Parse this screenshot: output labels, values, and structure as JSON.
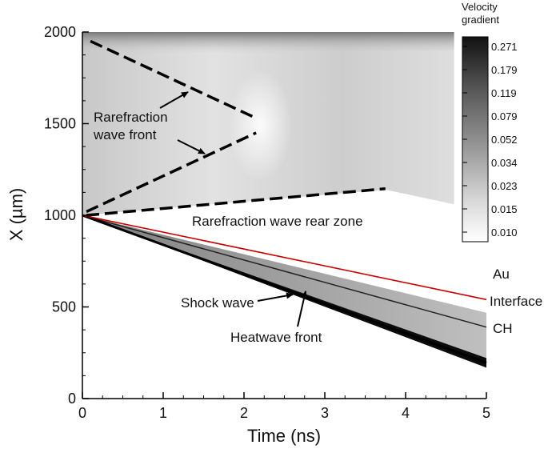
{
  "chart_data": {
    "type": "heatmap",
    "title": "",
    "xlabel": "Time (ns)",
    "ylabel": "X (µm)",
    "xlim": [
      0,
      5
    ],
    "ylim": [
      0,
      2000
    ],
    "x_ticks": [
      "0",
      "1",
      "2",
      "3",
      "4",
      "5"
    ],
    "y_ticks": [
      "0",
      "500",
      "1000",
      "1500",
      "2000"
    ],
    "colorbar": {
      "title_line1": "Velocity",
      "title_line2": "gradient",
      "levels": [
        "0.271",
        "0.179",
        "0.119",
        "0.079",
        "0.052",
        "0.034",
        "0.023",
        "0.015",
        "0.010"
      ]
    },
    "curves": {
      "interface": [
        [
          0,
          1000
        ],
        [
          5,
          540
        ]
      ],
      "shock_wave": [
        [
          0,
          1000
        ],
        [
          5,
          195
        ]
      ],
      "heatwave_front": [
        [
          0,
          1000
        ],
        [
          5,
          390
        ]
      ],
      "rarefaction_front_upper": [
        [
          0.1,
          1950
        ],
        [
          2.15,
          1530
        ]
      ],
      "rarefaction_front_lower": [
        [
          0.05,
          1020
        ],
        [
          2.15,
          1450
        ]
      ],
      "rarefaction_rear": [
        [
          0.05,
          1000
        ],
        [
          3.75,
          1145
        ]
      ]
    },
    "annotations": {
      "rarefaction_line1": "Rarefraction",
      "rarefaction_line2": "wave front",
      "rear_zone": "Rarefraction wave rear zone",
      "shock": "Shock wave",
      "heatwave": "Heatwave front",
      "au": "Au",
      "interface": "Interface",
      "ch": "CH"
    },
    "colors": {
      "interface_line": "#cc0000",
      "dashed_lines": "#000000",
      "arrows": "#000000"
    }
  }
}
